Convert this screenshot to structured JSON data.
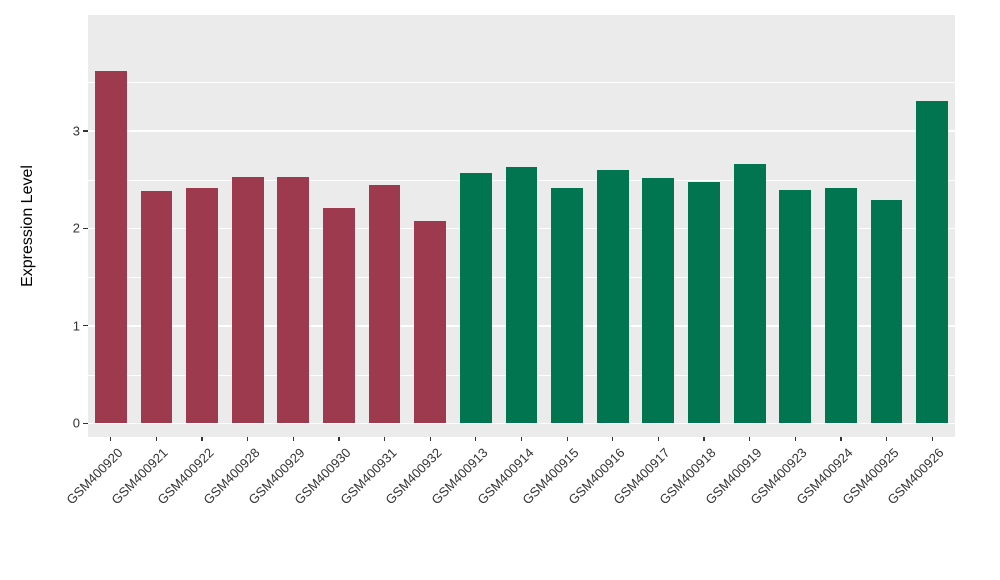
{
  "chart_data": {
    "type": "bar",
    "title": "",
    "xlabel": "",
    "ylabel": "Expression Level",
    "categories": [
      "GSM400920",
      "GSM400921",
      "GSM400922",
      "GSM400928",
      "GSM400929",
      "GSM400930",
      "GSM400931",
      "GSM400932",
      "GSM400913",
      "GSM400914",
      "GSM400915",
      "GSM400916",
      "GSM400917",
      "GSM400918",
      "GSM400919",
      "GSM400923",
      "GSM400924",
      "GSM400925",
      "GSM400926"
    ],
    "values": [
      3.62,
      2.38,
      2.42,
      2.53,
      2.53,
      2.21,
      2.45,
      2.08,
      2.57,
      2.63,
      2.42,
      2.6,
      2.52,
      2.48,
      2.66,
      2.39,
      2.42,
      2.29,
      3.31
    ],
    "groups": [
      "a",
      "a",
      "a",
      "a",
      "a",
      "a",
      "a",
      "a",
      "b",
      "b",
      "b",
      "b",
      "b",
      "b",
      "b",
      "b",
      "b",
      "b",
      "b"
    ],
    "group_colors": {
      "a": "#9E3A4D",
      "b": "#00754F"
    },
    "yticks": [
      0,
      1,
      2,
      3
    ],
    "minor_yticks": [
      0.5,
      1.5,
      2.5,
      3.5
    ],
    "ylim": [
      -0.14,
      4.19
    ],
    "grid": true,
    "legend": "none",
    "panel_background": "#EBEBEB",
    "grid_color": "#FFFFFF",
    "axis_text_color": "#333333",
    "bar_width_fraction": 0.7
  }
}
